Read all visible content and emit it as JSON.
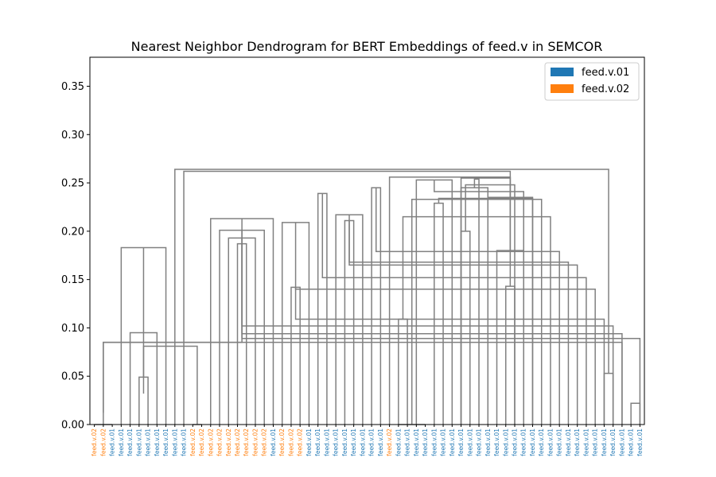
{
  "chart_data": {
    "type": "dendrogram",
    "title": "Nearest Neighbor Dendrogram for BERT Embeddings of feed.v in SEMCOR",
    "ylim": [
      0,
      0.38
    ],
    "yticks": [
      "0.00",
      "0.05",
      "0.10",
      "0.15",
      "0.20",
      "0.25",
      "0.30",
      "0.35"
    ],
    "ytick_values": [
      0,
      0.05,
      0.1,
      0.15,
      0.2,
      0.25,
      0.3,
      0.35
    ],
    "legend": [
      {
        "label": "feed.v.01",
        "color": "#1f77b4"
      },
      {
        "label": "feed.v.02",
        "color": "#ff7f0e"
      }
    ],
    "legend_position": "top-right",
    "link_color": "#808080",
    "leaves": [
      "feed.v.02",
      "feed.v.02",
      "feed.v.01",
      "feed.v.01",
      "feed.v.01",
      "feed.v.01",
      "feed.v.01",
      "feed.v.01",
      "feed.v.01",
      "feed.v.01",
      "feed.v.01",
      "feed.v.02",
      "feed.v.02",
      "feed.v.02",
      "feed.v.02",
      "feed.v.02",
      "feed.v.02",
      "feed.v.02",
      "feed.v.02",
      "feed.v.02",
      "feed.v.01",
      "feed.v.02",
      "feed.v.02",
      "feed.v.02",
      "feed.v.01",
      "feed.v.01",
      "feed.v.01",
      "feed.v.01",
      "feed.v.01",
      "feed.v.01",
      "feed.v.01",
      "feed.v.01",
      "feed.v.01",
      "feed.v.02",
      "feed.v.01",
      "feed.v.01",
      "feed.v.01",
      "feed.v.01",
      "feed.v.01",
      "feed.v.01",
      "feed.v.01",
      "feed.v.01",
      "feed.v.01",
      "feed.v.01",
      "feed.v.01",
      "feed.v.01",
      "feed.v.01",
      "feed.v.01",
      "feed.v.01",
      "feed.v.01",
      "feed.v.01",
      "feed.v.01",
      "feed.v.01",
      "feed.v.01",
      "feed.v.01",
      "feed.v.01",
      "feed.v.01",
      "feed.v.01",
      "feed.v.01",
      "feed.v.01",
      "feed.v.01",
      "feed.v.01"
    ],
    "links": [
      [
        1,
        1,
        0.012
      ],
      [
        5,
        6,
        0.049
      ],
      [
        7,
        4,
        0.095
      ],
      [
        3,
        8,
        0.183
      ],
      [
        11,
        12,
        0.0
      ],
      [
        16,
        17,
        0.187
      ],
      [
        15,
        18,
        0.193
      ],
      [
        14,
        19,
        0.201
      ],
      [
        13,
        20,
        0.213
      ],
      [
        22,
        23,
        0.142
      ],
      [
        21,
        24,
        0.209
      ],
      [
        25,
        26,
        0.239
      ],
      [
        28,
        29,
        0.211
      ],
      [
        27,
        30,
        0.217
      ],
      [
        31,
        32,
        0.245
      ],
      [
        34,
        35,
        0.109
      ],
      [
        34,
        37,
        0.0
      ],
      [
        38,
        39,
        0.229
      ],
      [
        36,
        40,
        0.253
      ],
      [
        41,
        42,
        0.2
      ],
      [
        41,
        44,
        0.245
      ],
      [
        46,
        47,
        0.143
      ],
      [
        45,
        48,
        0.18
      ],
      [
        44,
        49,
        0.235
      ],
      [
        57,
        58,
        0.053
      ],
      [
        60,
        61,
        0.022
      ],
      [
        59,
        62,
        0.085
      ],
      [
        64,
        65,
        0.032
      ],
      [
        63,
        66,
        0.081
      ],
      [
        62,
        67,
        0.085
      ],
      [
        61,
        68,
        0.089
      ],
      [
        59,
        69,
        0.094
      ],
      [
        58,
        70,
        0.102
      ],
      [
        57,
        71,
        0.109
      ],
      [
        56,
        72,
        0.14
      ],
      [
        55,
        73,
        0.152
      ],
      [
        54,
        74,
        0.165
      ],
      [
        53,
        75,
        0.168
      ],
      [
        52,
        76,
        0.179
      ],
      [
        51,
        77,
        0.215
      ],
      [
        50,
        78,
        0.233
      ],
      [
        49,
        79,
        0.234
      ],
      [
        48,
        80,
        0.241
      ],
      [
        47,
        81,
        0.248
      ],
      [
        43,
        82,
        0.254
      ],
      [
        41,
        83,
        0.255
      ],
      [
        33,
        84,
        0.256
      ],
      [
        10,
        85,
        0.262
      ],
      [
        9,
        86,
        0.264
      ],
      [
        2,
        0,
        0.0
      ]
    ]
  }
}
